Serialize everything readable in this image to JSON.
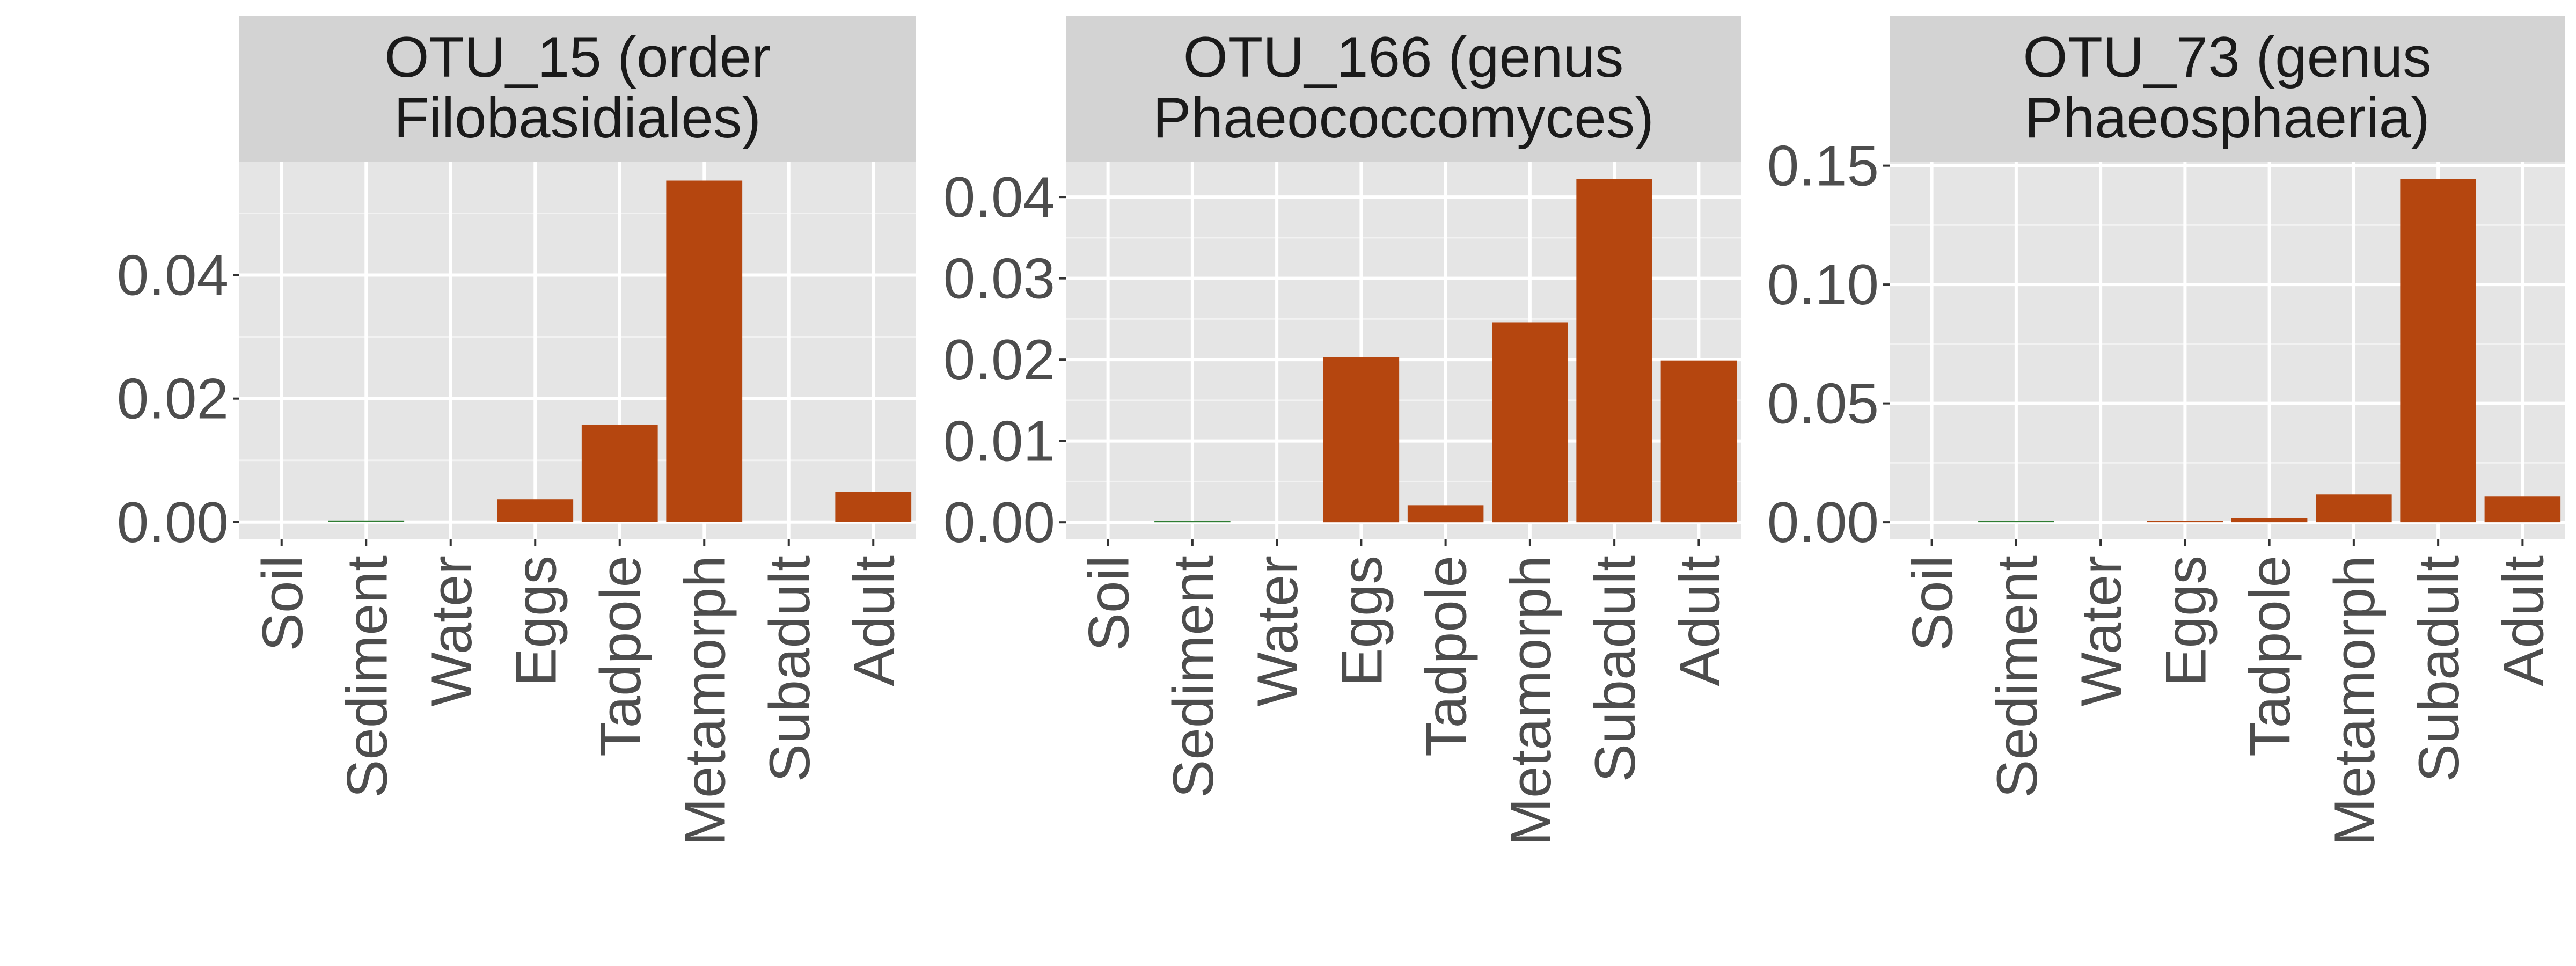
{
  "chart_data": [
    {
      "type": "bar",
      "title_lines": [
        "OTU_15 (order",
        "Filobasidiales)"
      ],
      "categories": [
        "Soil",
        "Sediment",
        "Water",
        "Eggs",
        "Tadpole",
        "Metamorph",
        "Subadult",
        "Adult"
      ],
      "values": [
        0.0,
        0.0002,
        0.0,
        0.0037,
        0.0158,
        0.0553,
        0.0,
        0.0049
      ],
      "bar_colors": [
        "#B5460F",
        "#2E7D32",
        "#B5460F",
        "#B5460F",
        "#B5460F",
        "#B5460F",
        "#B5460F",
        "#B5460F"
      ],
      "ylim": [
        -0.0028,
        0.0583
      ],
      "yticks": [
        0.0,
        0.02,
        0.04
      ],
      "ytick_labels": [
        "0.00",
        "0.02",
        "0.04"
      ],
      "minor_yticks": [
        0.01,
        0.03,
        0.05
      ],
      "xlabel": "",
      "ylabel": "",
      "grid": true
    },
    {
      "type": "bar",
      "title_lines": [
        "OTU_166 (genus",
        "Phaeococcomyces)"
      ],
      "categories": [
        "Soil",
        "Sediment",
        "Water",
        "Eggs",
        "Tadpole",
        "Metamorph",
        "Subadult",
        "Adult"
      ],
      "values": [
        0.0,
        0.0002,
        0.0,
        0.0203,
        0.0021,
        0.0246,
        0.0422,
        0.0199
      ],
      "bar_colors": [
        "#B5460F",
        "#2E7D32",
        "#B5460F",
        "#B5460F",
        "#B5460F",
        "#B5460F",
        "#B5460F",
        "#B5460F"
      ],
      "ylim": [
        -0.0021,
        0.0443
      ],
      "yticks": [
        0.0,
        0.01,
        0.02,
        0.03,
        0.04
      ],
      "ytick_labels": [
        "0.00",
        "0.01",
        "0.02",
        "0.03",
        "0.04"
      ],
      "minor_yticks": [
        0.005,
        0.015,
        0.025,
        0.035
      ],
      "xlabel": "",
      "ylabel": "",
      "grid": true
    },
    {
      "type": "bar",
      "title_lines": [
        "OTU_73 (genus",
        "Phaeosphaeria)"
      ],
      "categories": [
        "Soil",
        "Sediment",
        "Water",
        "Eggs",
        "Tadpole",
        "Metamorph",
        "Subadult",
        "Adult"
      ],
      "values": [
        0.0,
        0.0003,
        0.0,
        0.0005,
        0.0017,
        0.0117,
        0.1443,
        0.0108
      ],
      "bar_colors": [
        "#B5460F",
        "#2E7D32",
        "#B5460F",
        "#B5460F",
        "#B5460F",
        "#B5460F",
        "#B5460F",
        "#B5460F"
      ],
      "ylim": [
        -0.0072,
        0.1515
      ],
      "yticks": [
        0.0,
        0.05,
        0.1,
        0.15
      ],
      "ytick_labels": [
        "0.00",
        "0.05",
        "0.10",
        "0.15"
      ],
      "minor_yticks": [
        0.025,
        0.075,
        0.125
      ],
      "xlabel": "",
      "ylabel": "",
      "grid": true
    }
  ],
  "colors": {
    "panel_background": "#E5E5E5",
    "strip_background": "#D3D3D3",
    "grid_major": "#FFFFFF",
    "grid_minor": "#F2F2F2",
    "bar_fill": "#B5460F",
    "text": "#333333"
  }
}
